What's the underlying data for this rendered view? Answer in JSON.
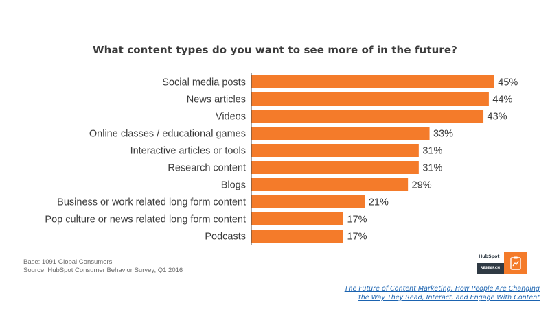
{
  "chart_data": {
    "type": "bar",
    "orientation": "horizontal",
    "title": "What content types do you want to see more of in the future?",
    "categories": [
      "Social media posts",
      "News articles",
      "Videos",
      "Online classes / educational games",
      "Interactive articles or tools",
      "Research content",
      "Blogs",
      "Business or work related long form content",
      "Pop culture or news related long form content",
      "Podcasts"
    ],
    "values": [
      45,
      44,
      43,
      33,
      31,
      31,
      29,
      21,
      17,
      17
    ],
    "value_labels": [
      "45%",
      "44%",
      "43%",
      "33%",
      "31%",
      "31%",
      "29%",
      "21%",
      "17%",
      "17%"
    ],
    "value_unit": "%",
    "xlabel": "",
    "ylabel": "",
    "xlim": [
      0,
      100
    ],
    "grid": false,
    "legend": "none",
    "bar_color": "#f47b2a"
  },
  "footnotes": {
    "base": "Base: 1091 Global Consumers",
    "source": "Source: HubSpot Consumer Behavior Survey, Q1 2016"
  },
  "logo": {
    "brand": "HubSpot",
    "label": "RESEARCH",
    "icon": "clipboard-chart-icon"
  },
  "credit": {
    "line1": "The Future of Content Marketing: How People Are Changing",
    "line2": "the Way They Read, Interact, and Engage With Content"
  },
  "colors": {
    "bar": "#f47b2a",
    "text": "#3b3b3b",
    "axis": "#444444",
    "link": "#1b63b0",
    "logo_dark": "#2f3a44"
  }
}
